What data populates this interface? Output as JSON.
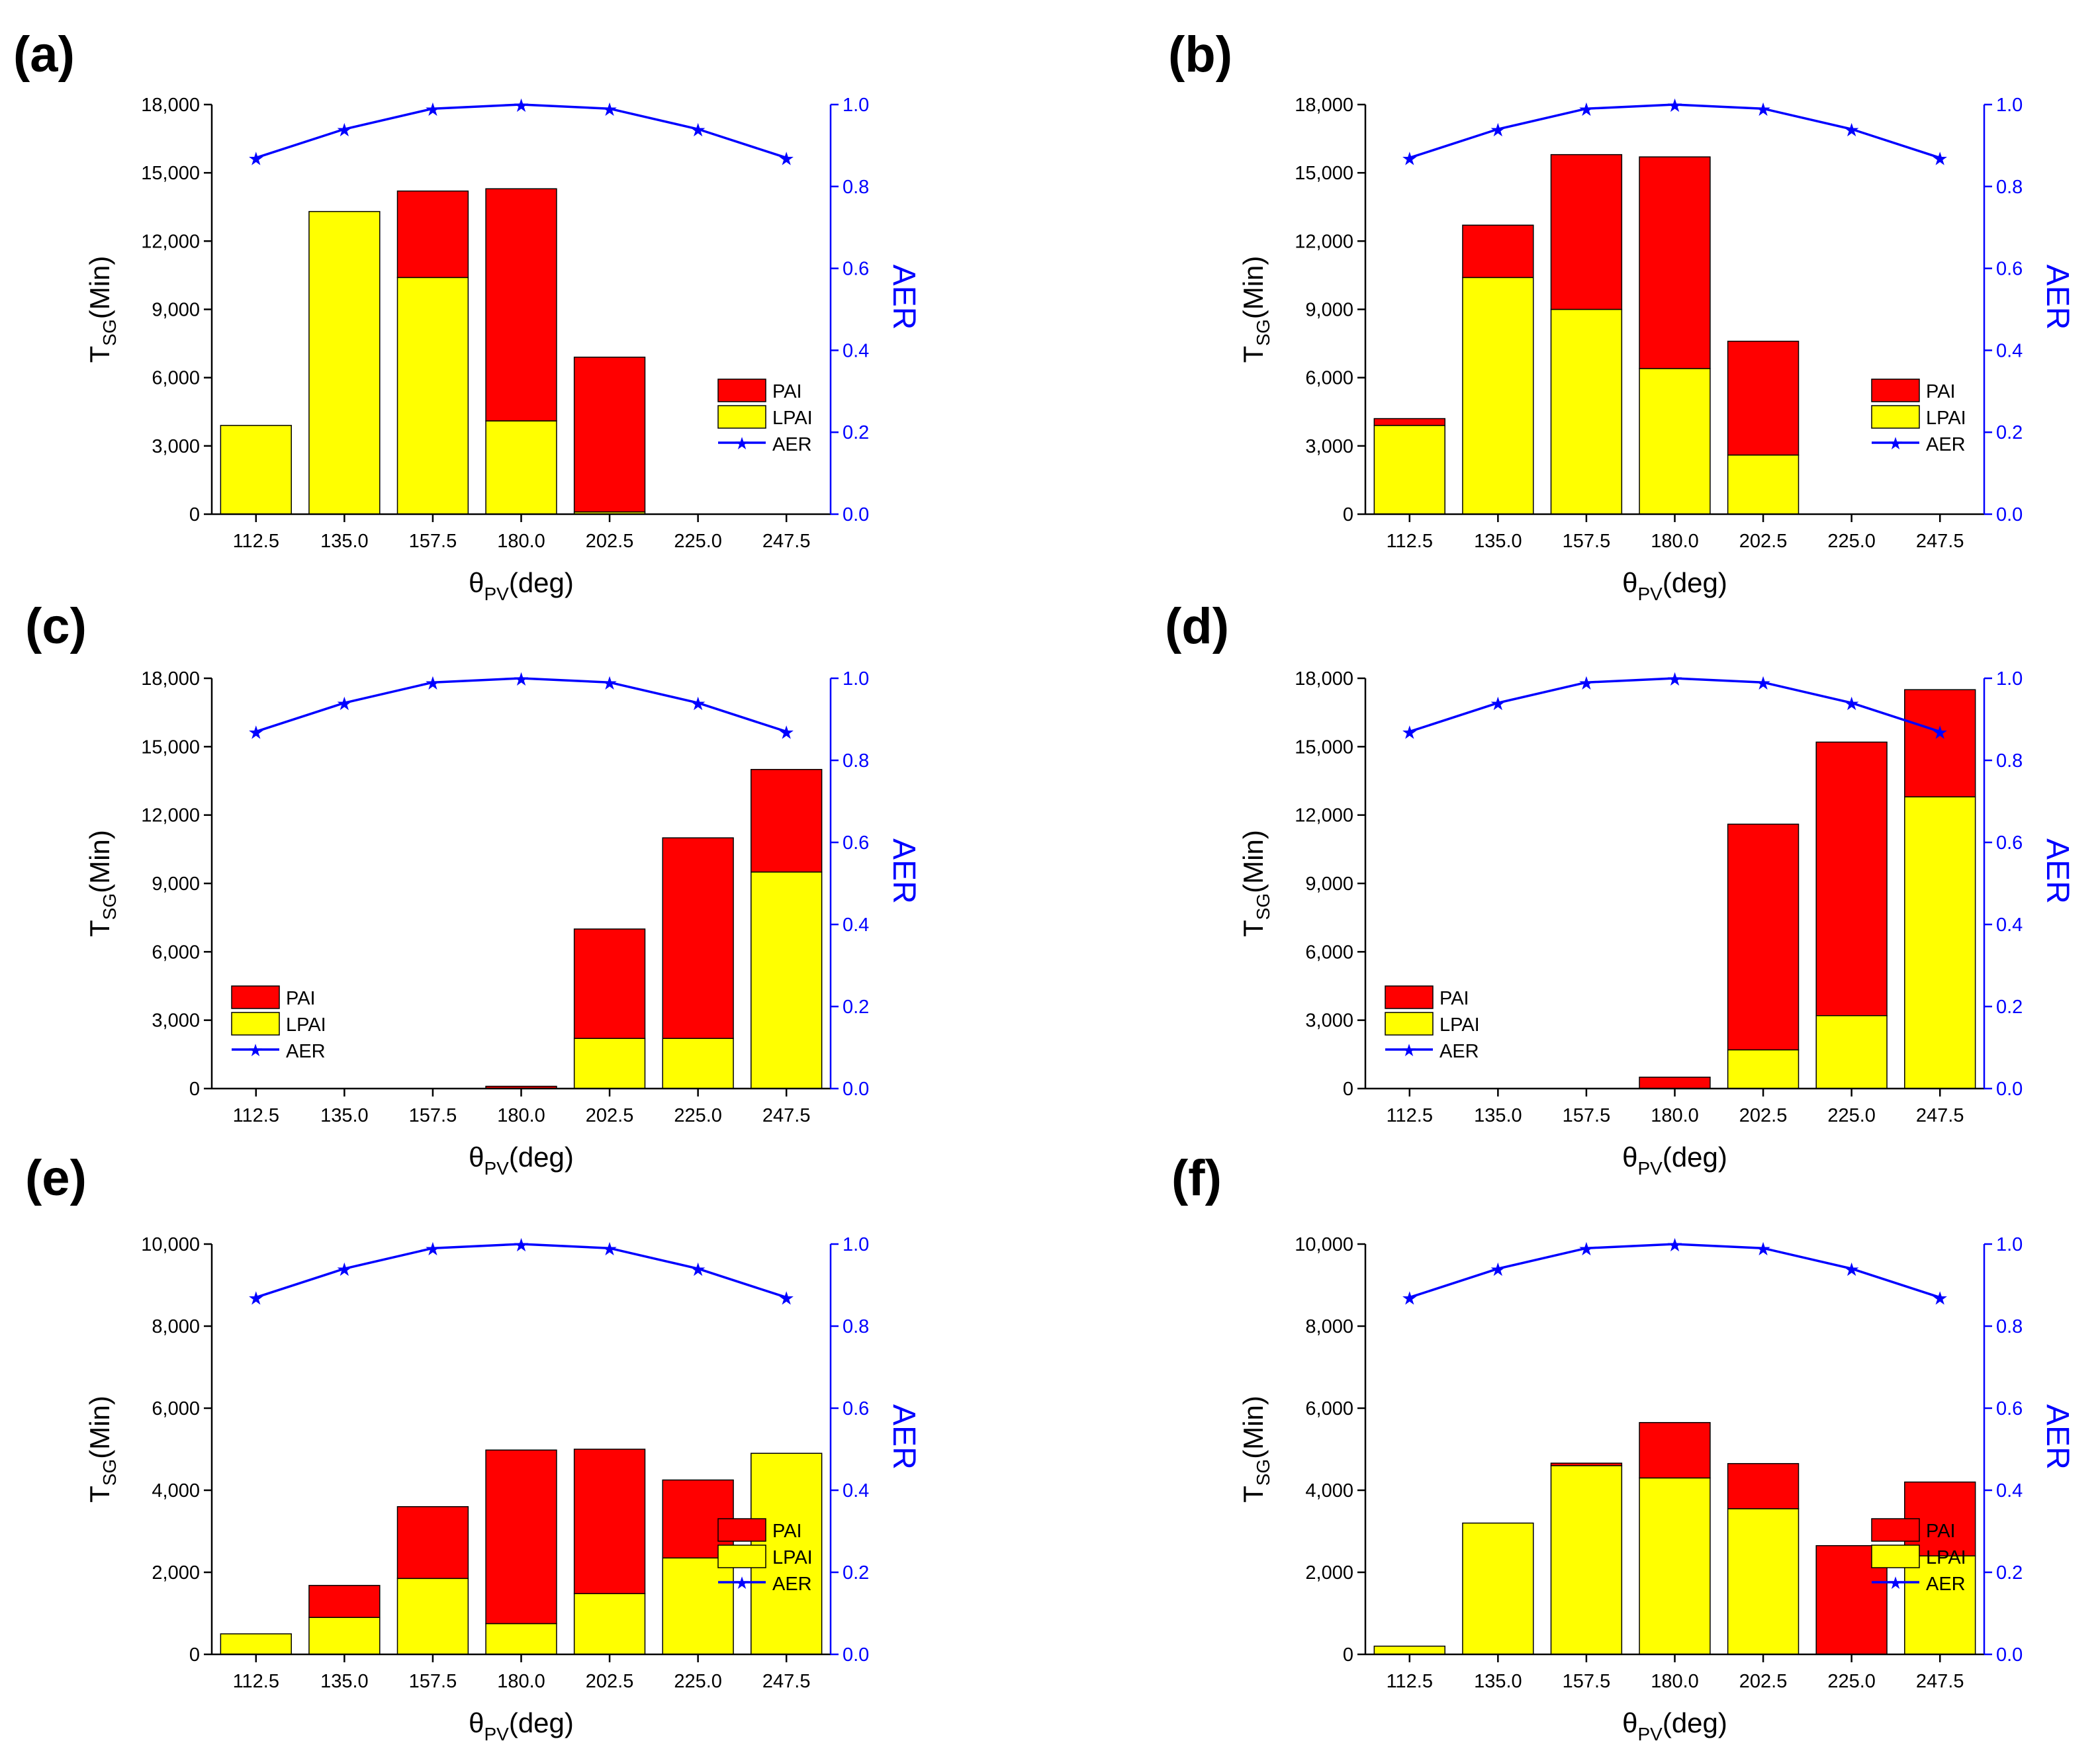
{
  "figure": {
    "colors": {
      "pai": "#ff0000",
      "lpai": "#ffff00",
      "aer": "#0000ff",
      "axis": "#000000"
    }
  },
  "chart_data": [
    {
      "panel": "(a)",
      "type": "bar",
      "stacked": true,
      "categories": [
        "112.5",
        "135.0",
        "157.5",
        "180.0",
        "202.5",
        "225.0",
        "247.5"
      ],
      "series": [
        {
          "name": "LPAI",
          "values": [
            3900,
            13300,
            10400,
            4100,
            100,
            0,
            0
          ]
        },
        {
          "name": "PAI",
          "values": [
            0,
            0,
            3800,
            10200,
            6800,
            0,
            0
          ]
        }
      ],
      "aer": {
        "name": "AER",
        "values": [
          0.87,
          0.94,
          0.99,
          1.0,
          0.99,
          0.94,
          0.87
        ]
      },
      "ylim": [
        0,
        18000
      ],
      "yticks": [
        "0",
        "3,000",
        "6,000",
        "9,000",
        "12,000",
        "15,000",
        "18,000"
      ],
      "y2lim": [
        0,
        1
      ],
      "y2ticks": [
        "0.0",
        "0.2",
        "0.4",
        "0.6",
        "0.8",
        "1.0"
      ],
      "ylabel": "T",
      "ylabel_sub": "SG",
      "ylabel_rest": "(Min)",
      "xlabel": "θ",
      "xlabel_sub": "PV",
      "xlabel_rest": "(deg)",
      "y2label": "AER",
      "legend_position": "right",
      "legend": [
        "PAI",
        "LPAI",
        "AER"
      ]
    },
    {
      "panel": "(b)",
      "type": "bar",
      "stacked": true,
      "categories": [
        "112.5",
        "135.0",
        "157.5",
        "180.0",
        "202.5",
        "225.0",
        "247.5"
      ],
      "series": [
        {
          "name": "LPAI",
          "values": [
            3900,
            10400,
            9000,
            6400,
            2600,
            0,
            0
          ]
        },
        {
          "name": "PAI",
          "values": [
            300,
            2300,
            6800,
            9300,
            5000,
            0,
            0
          ]
        }
      ],
      "aer": {
        "name": "AER",
        "values": [
          0.87,
          0.94,
          0.99,
          1.0,
          0.99,
          0.94,
          0.87
        ]
      },
      "ylim": [
        0,
        18000
      ],
      "yticks": [
        "0",
        "3,000",
        "6,000",
        "9,000",
        "12,000",
        "15,000",
        "18,000"
      ],
      "y2lim": [
        0,
        1
      ],
      "y2ticks": [
        "0.0",
        "0.2",
        "0.4",
        "0.6",
        "0.8",
        "1.0"
      ],
      "ylabel": "T",
      "ylabel_sub": "SG",
      "ylabel_rest": "(Min)",
      "xlabel": "θ",
      "xlabel_sub": "PV",
      "xlabel_rest": "(deg)",
      "y2label": "AER",
      "legend_position": "right",
      "legend": [
        "PAI",
        "LPAI",
        "AER"
      ]
    },
    {
      "panel": "(c)",
      "type": "bar",
      "stacked": true,
      "categories": [
        "112.5",
        "135.0",
        "157.5",
        "180.0",
        "202.5",
        "225.0",
        "247.5"
      ],
      "series": [
        {
          "name": "LPAI",
          "values": [
            0,
            0,
            0,
            0,
            2200,
            2200,
            9500
          ]
        },
        {
          "name": "PAI",
          "values": [
            0,
            0,
            0,
            100,
            4800,
            8800,
            4500
          ]
        }
      ],
      "aer": {
        "name": "AER",
        "values": [
          0.87,
          0.94,
          0.99,
          1.0,
          0.99,
          0.94,
          0.87
        ]
      },
      "ylim": [
        0,
        18000
      ],
      "yticks": [
        "0",
        "3,000",
        "6,000",
        "9,000",
        "12,000",
        "15,000",
        "18,000"
      ],
      "y2lim": [
        0,
        1
      ],
      "y2ticks": [
        "0.0",
        "0.2",
        "0.4",
        "0.6",
        "0.8",
        "1.0"
      ],
      "ylabel": "T",
      "ylabel_sub": "SG",
      "ylabel_rest": "(Min)",
      "xlabel": "θ",
      "xlabel_sub": "PV",
      "xlabel_rest": "(deg)",
      "y2label": "AER",
      "legend_position": "left",
      "legend": [
        "PAI",
        "LPAI",
        "AER"
      ]
    },
    {
      "panel": "(d)",
      "type": "bar",
      "stacked": true,
      "categories": [
        "112.5",
        "135.0",
        "157.5",
        "180.0",
        "202.5",
        "225.0",
        "247.5"
      ],
      "series": [
        {
          "name": "LPAI",
          "values": [
            0,
            0,
            0,
            0,
            1700,
            3200,
            12800
          ]
        },
        {
          "name": "PAI",
          "values": [
            0,
            0,
            0,
            500,
            9900,
            12000,
            4700
          ]
        }
      ],
      "aer": {
        "name": "AER",
        "values": [
          0.87,
          0.94,
          0.99,
          1.0,
          0.99,
          0.94,
          0.87
        ]
      },
      "ylim": [
        0,
        18000
      ],
      "yticks": [
        "0",
        "3,000",
        "6,000",
        "9,000",
        "12,000",
        "15,000",
        "18,000"
      ],
      "y2lim": [
        0,
        1
      ],
      "y2ticks": [
        "0.0",
        "0.2",
        "0.4",
        "0.6",
        "0.8",
        "1.0"
      ],
      "ylabel": "T",
      "ylabel_sub": "SG",
      "ylabel_rest": "(Min)",
      "xlabel": "θ",
      "xlabel_sub": "PV",
      "xlabel_rest": "(deg)",
      "y2label": "AER",
      "legend_position": "left",
      "legend": [
        "PAI",
        "LPAI",
        "AER"
      ]
    },
    {
      "panel": "(e)",
      "type": "bar",
      "stacked": true,
      "categories": [
        "112.5",
        "135.0",
        "157.5",
        "180.0",
        "202.5",
        "225.0",
        "247.5"
      ],
      "series": [
        {
          "name": "LPAI",
          "values": [
            500,
            900,
            1850,
            750,
            1480,
            2350,
            4900
          ]
        },
        {
          "name": "PAI",
          "values": [
            0,
            780,
            1750,
            4230,
            3520,
            1900,
            0
          ]
        }
      ],
      "aer": {
        "name": "AER",
        "values": [
          0.87,
          0.94,
          0.99,
          1.0,
          0.99,
          0.94,
          0.87
        ]
      },
      "ylim": [
        0,
        10000
      ],
      "yticks": [
        "0",
        "2,000",
        "4,000",
        "6,000",
        "8,000",
        "10,000"
      ],
      "y2lim": [
        0,
        1
      ],
      "y2ticks": [
        "0.0",
        "0.2",
        "0.4",
        "0.6",
        "0.8",
        "1.0"
      ],
      "ylabel": "T",
      "ylabel_sub": "SG",
      "ylabel_rest": "(Min)",
      "xlabel": "θ",
      "xlabel_sub": "PV",
      "xlabel_rest": "(deg)",
      "y2label": "AER",
      "legend_position": "right",
      "legend": [
        "PAI",
        "LPAI",
        "AER"
      ]
    },
    {
      "panel": "(f)",
      "type": "bar",
      "stacked": true,
      "categories": [
        "112.5",
        "135.0",
        "157.5",
        "180.0",
        "202.5",
        "225.0",
        "247.5"
      ],
      "series": [
        {
          "name": "LPAI",
          "values": [
            200,
            3200,
            4600,
            4300,
            3550,
            0,
            2400
          ]
        },
        {
          "name": "PAI",
          "values": [
            0,
            0,
            60,
            1350,
            1100,
            2650,
            1800
          ]
        }
      ],
      "aer": {
        "name": "AER",
        "values": [
          0.87,
          0.94,
          0.99,
          1.0,
          0.99,
          0.94,
          0.87
        ]
      },
      "ylim": [
        0,
        10000
      ],
      "yticks": [
        "0",
        "2,000",
        "4,000",
        "6,000",
        "8,000",
        "10,000"
      ],
      "y2lim": [
        0,
        1
      ],
      "y2ticks": [
        "0.0",
        "0.2",
        "0.4",
        "0.6",
        "0.8",
        "1.0"
      ],
      "ylabel": "T",
      "ylabel_sub": "SG",
      "ylabel_rest": "(Min)",
      "xlabel": "θ",
      "xlabel_sub": "PV",
      "xlabel_rest": "(deg)",
      "y2label": "AER",
      "legend_position": "right",
      "legend": [
        "PAI",
        "LPAI",
        "AER"
      ]
    }
  ]
}
